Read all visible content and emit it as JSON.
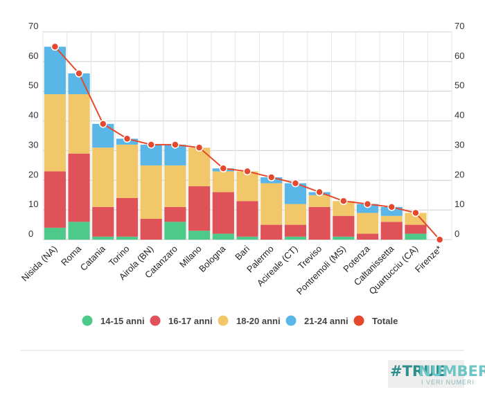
{
  "chart_data": {
    "type": "bar",
    "stacked": true,
    "categories": [
      "Nisida (NA)",
      "Roma",
      "Catania",
      "Torino",
      "Airola (BN)",
      "Catanzaro",
      "Milano",
      "Bologna",
      "Bari",
      "Palermo",
      "Acireale (CT)",
      "Treviso",
      "Pontremoli (MS)",
      "Potenza",
      "Caltanissetta",
      "Quartucciu (CA)",
      "Firenze*"
    ],
    "series": [
      {
        "name": "14-15 anni",
        "color": "#4dc98a",
        "values": [
          4,
          6,
          1,
          1,
          0,
          6,
          3,
          2,
          1,
          0,
          1,
          0,
          1,
          0,
          0,
          2,
          0
        ]
      },
      {
        "name": "16-17 anni",
        "color": "#de5258",
        "values": [
          19,
          23,
          10,
          13,
          7,
          5,
          15,
          14,
          12,
          5,
          4,
          11,
          7,
          2,
          6,
          3,
          0
        ]
      },
      {
        "name": "18-20 anni",
        "color": "#f2c76a",
        "values": [
          26,
          20,
          20,
          18,
          18,
          14,
          13,
          7,
          10,
          14,
          7,
          4,
          5,
          7,
          2,
          4,
          0
        ]
      },
      {
        "name": "21-24 anni",
        "color": "#5ab6e6",
        "values": [
          16,
          7,
          8,
          2,
          7,
          7,
          0,
          1,
          0,
          2,
          7,
          1,
          0,
          3,
          3,
          0,
          0
        ]
      }
    ],
    "line": {
      "name": "Totale",
      "color": "#e4492e",
      "values": [
        65,
        56,
        39,
        34,
        32,
        32,
        31,
        24,
        23,
        21,
        19,
        16,
        13,
        12,
        11,
        9,
        0
      ]
    },
    "ylim": [
      0,
      70
    ],
    "yticks": [
      0,
      10,
      20,
      30,
      40,
      50,
      60,
      70
    ],
    "dual_axis_labels": true,
    "grid": true,
    "legend_position": "bottom"
  },
  "logo": {
    "hash": "#TRUE",
    "word": "NUMBERS",
    "tagline": "I VERI NUMERI"
  }
}
